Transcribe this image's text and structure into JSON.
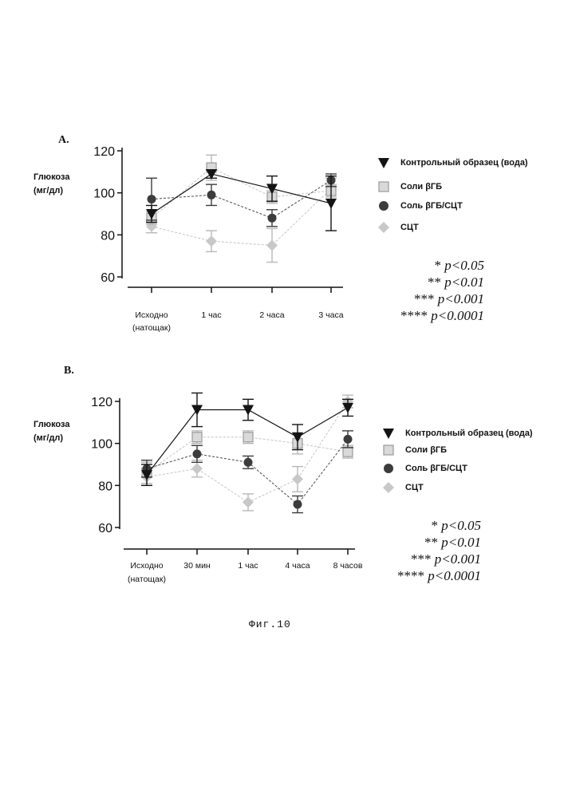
{
  "figure_caption": "Фиг.10",
  "significance": [
    {
      "stars": "*",
      "text": "p<0.05"
    },
    {
      "stars": "**",
      "text": "p<0.01"
    },
    {
      "stars": "***",
      "text": "p<0.001"
    },
    {
      "stars": "****",
      "text": "p<0.0001"
    }
  ],
  "series_styles": [
    {
      "name": "Контрольный образец (вода)",
      "marker": "triangle-down",
      "color": "#141414",
      "line": "solid"
    },
    {
      "name": "Соли βГБ",
      "marker": "square",
      "color": "#b4b4b4",
      "line": "dashed"
    },
    {
      "name": "Соль βГБ/СЦТ",
      "marker": "circle",
      "color": "#3c3c3c",
      "line": "dashed"
    },
    {
      "name": "СЦТ",
      "marker": "diamond",
      "color": "#c8c8c8",
      "line": "dashed"
    }
  ],
  "chart_data": [
    {
      "panel": "A.",
      "type": "line",
      "ylabel": "Глюкоза\n(мг/дл)",
      "ylim": [
        60,
        120
      ],
      "yticks": [
        60,
        80,
        100,
        120
      ],
      "categories": [
        "Исходно\n(натощак)",
        "1 час",
        "2 часа",
        "3 часа"
      ],
      "grid": false,
      "legend_position": "right",
      "series": [
        {
          "name": "Контрольный образец (вода)",
          "values": [
            90,
            109,
            102,
            95
          ],
          "err": [
            4,
            2,
            6,
            13
          ]
        },
        {
          "name": "Соли βГБ",
          "values": [
            88,
            112,
            98,
            101
          ],
          "err": [
            3,
            6,
            3,
            3
          ]
        },
        {
          "name": "Соль βГБ/СЦТ",
          "values": [
            97,
            99,
            88,
            106
          ],
          "err": [
            10,
            5,
            4,
            3
          ]
        },
        {
          "name": "СЦТ",
          "values": [
            84,
            77,
            75,
            102
          ],
          "err": [
            3,
            5,
            8,
            5
          ]
        }
      ]
    },
    {
      "panel": "B.",
      "type": "line",
      "ylabel": "Глюкоза\n(мг/дл)",
      "ylim": [
        60,
        120
      ],
      "yticks": [
        60,
        80,
        100,
        120
      ],
      "categories": [
        "Исходно\n(натощак)",
        "30 мин",
        "1 час",
        "4 часа",
        "8 часов"
      ],
      "grid": false,
      "legend_position": "right",
      "series": [
        {
          "name": "Контрольный образец (вода)",
          "values": [
            85,
            116,
            116,
            103,
            117
          ],
          "err": [
            5,
            8,
            5,
            6,
            4
          ]
        },
        {
          "name": "Соли βГБ",
          "values": [
            86,
            103,
            103,
            100,
            96
          ],
          "err": [
            5,
            3,
            3,
            5,
            3
          ]
        },
        {
          "name": "Соль βГБ/СЦТ",
          "values": [
            88,
            95,
            91,
            71,
            102
          ],
          "err": [
            4,
            4,
            3,
            4,
            4
          ]
        },
        {
          "name": "СЦТ",
          "values": [
            84,
            88,
            72,
            83,
            120
          ],
          "err": [
            4,
            4,
            4,
            6,
            3
          ]
        }
      ]
    }
  ]
}
